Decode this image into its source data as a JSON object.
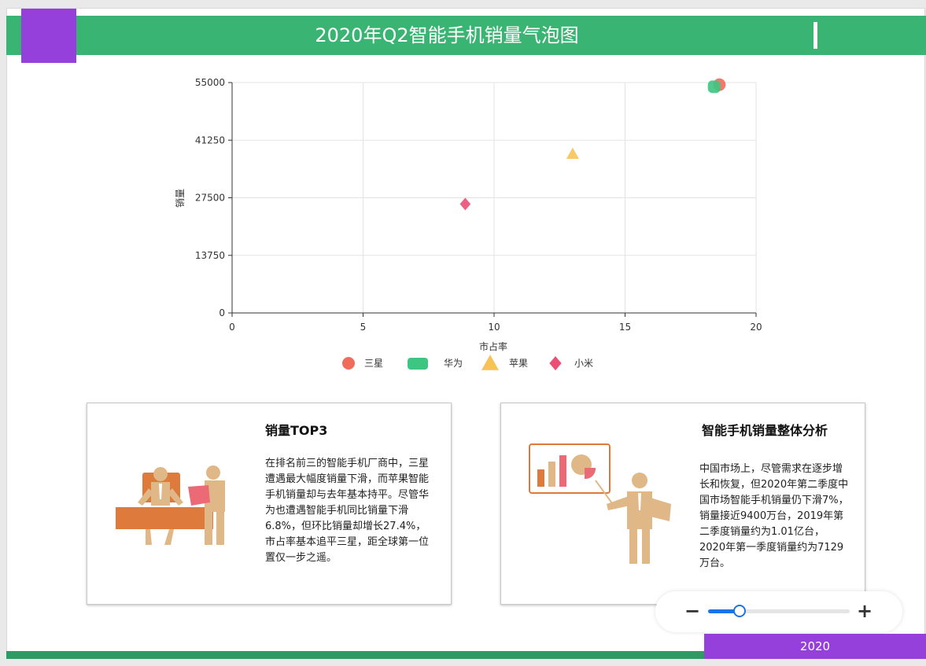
{
  "header": {
    "title": "2020年Q2智能手机销量气泡图"
  },
  "colors": {
    "header": "#3ab473",
    "accent": "#9640dc",
    "footer": "#2f9a64"
  },
  "chart_data": {
    "type": "scatter",
    "xlabel": "市占率",
    "ylabel": "销量",
    "xlim": [
      0,
      20
    ],
    "ylim": [
      0,
      55000
    ],
    "x_ticks": [
      "0",
      "5",
      "10",
      "15",
      "20"
    ],
    "y_ticks": [
      "0",
      "13750",
      "27500",
      "41250",
      "55000"
    ],
    "grid": true,
    "legend_position": "bottom",
    "series": [
      {
        "name": "三星",
        "symbol": "circle",
        "color": "#f16b5d",
        "points": [
          [
            18.6,
            54500
          ]
        ]
      },
      {
        "name": "华为",
        "symbol": "roundRect",
        "color": "#3ec581",
        "points": [
          [
            18.4,
            54000
          ]
        ]
      },
      {
        "name": "苹果",
        "symbol": "triangle",
        "color": "#f7c357",
        "points": [
          [
            13,
            38000
          ]
        ]
      },
      {
        "name": "小米",
        "symbol": "diamond",
        "color": "#ec4f75",
        "points": [
          [
            8.9,
            26000
          ]
        ]
      }
    ]
  },
  "cards": [
    {
      "title": "销量TOP3",
      "text": "在排名前三的智能手机厂商中，三星遭遇最大幅度销量下滑，而苹果智能手机销量却与去年基本持平。尽管华为也遭遇智能手机同比销量下滑6.8%，但环比销量却增长27.4%，市占率基本追平三星，距全球第一位置仅一步之遥。",
      "illustration_icon": "meeting-illustration-icon"
    },
    {
      "title": "智能手机销量整体分析",
      "text": "中国市场上，尽管需求在逐步增长和恢复，但2020年第二季度中国市场智能手机销量仍下滑7%，销量接近9400万台，2019年第二季度销量约为1.01亿台，2020年第一季度销量约为7129万台。",
      "illustration_icon": "presentation-illustration-icon"
    }
  ],
  "zoom": {
    "minus": "−",
    "plus": "+",
    "level": 0.22
  },
  "footer": {
    "year": "2020"
  }
}
